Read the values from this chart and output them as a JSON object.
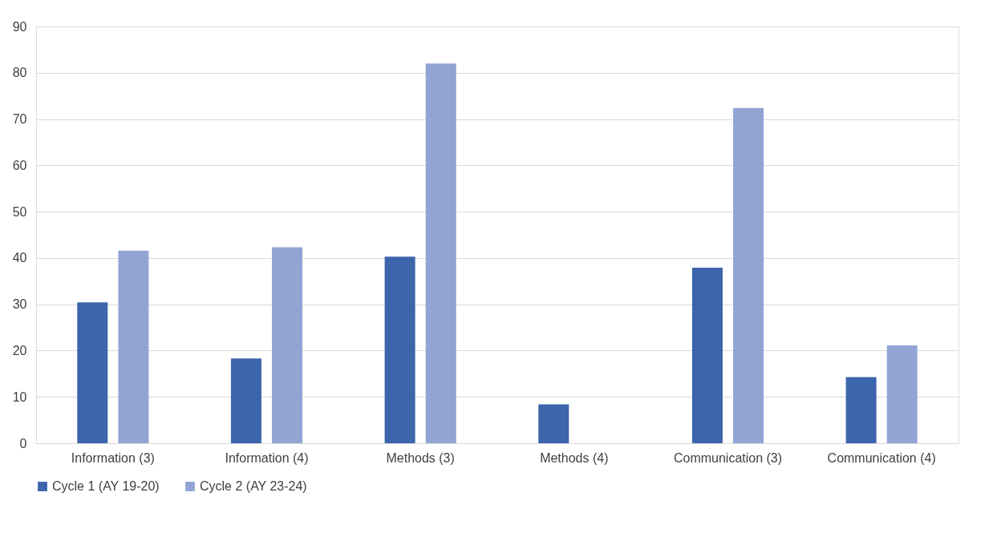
{
  "chart_data": {
    "type": "bar",
    "categories": [
      "Information (3)",
      "Information (4)",
      "Methods (3)",
      "Methods (4)",
      "Communication (3)",
      "Communication (4)"
    ],
    "series": [
      {
        "name": "Cycle 1 (AY 19-20)",
        "color": "#3c65ac",
        "values": [
          30.4,
          18.3,
          40.3,
          8.4,
          37.9,
          14.3
        ]
      },
      {
        "name": "Cycle 2 (AY 23-24)",
        "color": "#91a4d4",
        "values": [
          41.6,
          42.3,
          82.0,
          null,
          72.4,
          21.1
        ]
      }
    ],
    "ylim": [
      0,
      90
    ],
    "yticks": [
      0,
      10,
      20,
      30,
      40,
      50,
      60,
      70,
      80,
      90
    ],
    "grid": "y",
    "legend": "bottom"
  }
}
